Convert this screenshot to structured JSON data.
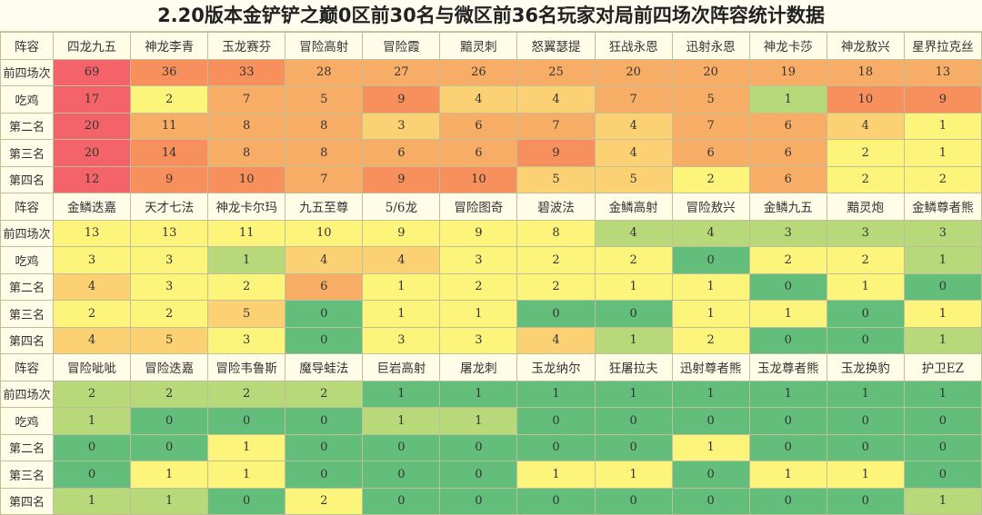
{
  "title": "2.20版本金铲铲之巅0区前30名与微区前36名玩家对局前四场次阵容统计数据",
  "row_labels": [
    "前四场次",
    "吃鸡",
    "第二名",
    "第三名",
    "第四名"
  ],
  "header_label": "阵容",
  "colors": {
    "red": "#f4636a",
    "orange_red": "#f7905c",
    "orange": "#f8ad66",
    "light_orange": "#fbd173",
    "yellow": "#fdf47b",
    "light_green": "#b7d97a",
    "green": "#63be7b",
    "cream": "#fffce8"
  },
  "blocks": [
    {
      "comps": [
        "四龙九五",
        "神龙李青",
        "玉龙赛芬",
        "冒险高射",
        "冒险霞",
        "黯灵刺",
        "怒翼瑟提",
        "狂战永恩",
        "迅射永恩",
        "神龙卡莎",
        "神龙敖兴",
        "星界拉克丝"
      ],
      "rows": [
        [
          "69",
          "36",
          "33",
          "28",
          "27",
          "26",
          "25",
          "20",
          "20",
          "19",
          "18",
          "13"
        ],
        [
          "17",
          "2",
          "7",
          "5",
          "9",
          "4",
          "4",
          "7",
          "5",
          "1",
          "10",
          "9"
        ],
        [
          "20",
          "11",
          "8",
          "8",
          "3",
          "6",
          "7",
          "4",
          "7",
          "6",
          "4",
          "1"
        ],
        [
          "20",
          "14",
          "8",
          "8",
          "6",
          "6",
          "9",
          "4",
          "6",
          "6",
          "2",
          "1"
        ],
        [
          "12",
          "9",
          "10",
          "7",
          "9",
          "10",
          "5",
          "5",
          "2",
          "6",
          "2",
          "2"
        ]
      ],
      "fills": [
        [
          "red",
          "orange_red",
          "orange_red",
          "orange",
          "orange",
          "orange",
          "orange",
          "orange",
          "orange",
          "orange",
          "orange",
          "orange"
        ],
        [
          "red",
          "yellow",
          "orange",
          "orange",
          "orange_red",
          "light_orange",
          "light_orange",
          "orange",
          "orange",
          "light_green",
          "orange_red",
          "orange_red"
        ],
        [
          "red",
          "orange",
          "orange",
          "orange",
          "light_orange",
          "orange",
          "orange",
          "light_orange",
          "orange",
          "orange",
          "light_orange",
          "yellow"
        ],
        [
          "red",
          "orange_red",
          "orange",
          "orange",
          "orange",
          "orange",
          "orange_red",
          "light_orange",
          "orange",
          "orange",
          "yellow",
          "yellow"
        ],
        [
          "red",
          "orange_red",
          "orange_red",
          "orange",
          "orange_red",
          "orange_red",
          "light_orange",
          "light_orange",
          "yellow",
          "orange",
          "yellow",
          "yellow"
        ]
      ]
    },
    {
      "comps": [
        "金鳞迭嘉",
        "天才七法",
        "神龙卡尔玛",
        "九五至尊",
        "5/6龙",
        "冒险图奇",
        "碧波法",
        "金鳞高射",
        "冒险敖兴",
        "金鳞九五",
        "黯灵炮",
        "金鳞尊者熊"
      ],
      "rows": [
        [
          "13",
          "13",
          "11",
          "10",
          "9",
          "9",
          "8",
          "4",
          "4",
          "3",
          "3",
          "3"
        ],
        [
          "3",
          "3",
          "1",
          "4",
          "4",
          "3",
          "2",
          "2",
          "0",
          "2",
          "2",
          "1"
        ],
        [
          "4",
          "3",
          "2",
          "6",
          "1",
          "2",
          "2",
          "1",
          "1",
          "0",
          "1",
          "0"
        ],
        [
          "2",
          "2",
          "5",
          "0",
          "1",
          "1",
          "0",
          "0",
          "1",
          "1",
          "0",
          "1"
        ],
        [
          "4",
          "5",
          "3",
          "0",
          "3",
          "3",
          "4",
          "1",
          "2",
          "0",
          "0",
          "1"
        ]
      ],
      "fills": [
        [
          "yellow",
          "yellow",
          "yellow",
          "yellow",
          "yellow",
          "yellow",
          "yellow",
          "light_green",
          "light_green",
          "light_green",
          "light_green",
          "light_green"
        ],
        [
          "yellow",
          "yellow",
          "light_green",
          "light_orange",
          "light_orange",
          "yellow",
          "yellow",
          "yellow",
          "green",
          "yellow",
          "yellow",
          "light_green"
        ],
        [
          "light_orange",
          "yellow",
          "yellow",
          "orange",
          "yellow",
          "yellow",
          "yellow",
          "yellow",
          "yellow",
          "green",
          "yellow",
          "green"
        ],
        [
          "yellow",
          "yellow",
          "light_orange",
          "green",
          "yellow",
          "yellow",
          "green",
          "green",
          "yellow",
          "yellow",
          "green",
          "yellow"
        ],
        [
          "light_orange",
          "light_orange",
          "yellow",
          "green",
          "yellow",
          "yellow",
          "light_orange",
          "light_green",
          "yellow",
          "green",
          "green",
          "light_green"
        ]
      ]
    },
    {
      "comps": [
        "冒险呲呲",
        "冒险迭嘉",
        "冒险韦鲁斯",
        "魔导蛙法",
        "巨岩高射",
        "屠龙刺",
        "玉龙纳尔",
        "狂屠拉夫",
        "迅射尊者熊",
        "玉龙尊者熊",
        "玉龙换豹",
        "护卫EZ"
      ],
      "rows": [
        [
          "2",
          "2",
          "2",
          "2",
          "1",
          "1",
          "1",
          "1",
          "1",
          "1",
          "1",
          "1"
        ],
        [
          "1",
          "0",
          "0",
          "0",
          "1",
          "1",
          "0",
          "0",
          "0",
          "0",
          "0",
          "0"
        ],
        [
          "0",
          "0",
          "1",
          "0",
          "0",
          "0",
          "0",
          "0",
          "1",
          "0",
          "0",
          "0"
        ],
        [
          "0",
          "1",
          "1",
          "0",
          "0",
          "0",
          "1",
          "1",
          "0",
          "1",
          "1",
          "0"
        ],
        [
          "1",
          "1",
          "0",
          "2",
          "0",
          "0",
          "0",
          "0",
          "0",
          "0",
          "0",
          "1"
        ]
      ],
      "fills": [
        [
          "light_green",
          "light_green",
          "light_green",
          "light_green",
          "green",
          "green",
          "green",
          "green",
          "green",
          "green",
          "green",
          "green"
        ],
        [
          "light_green",
          "green",
          "green",
          "green",
          "light_green",
          "light_green",
          "green",
          "green",
          "green",
          "green",
          "green",
          "green"
        ],
        [
          "green",
          "green",
          "yellow",
          "green",
          "green",
          "green",
          "green",
          "green",
          "yellow",
          "green",
          "green",
          "green"
        ],
        [
          "green",
          "yellow",
          "yellow",
          "green",
          "green",
          "green",
          "yellow",
          "yellow",
          "green",
          "yellow",
          "yellow",
          "green"
        ],
        [
          "light_green",
          "light_green",
          "green",
          "yellow",
          "green",
          "green",
          "green",
          "green",
          "green",
          "green",
          "green",
          "light_green"
        ]
      ]
    }
  ]
}
